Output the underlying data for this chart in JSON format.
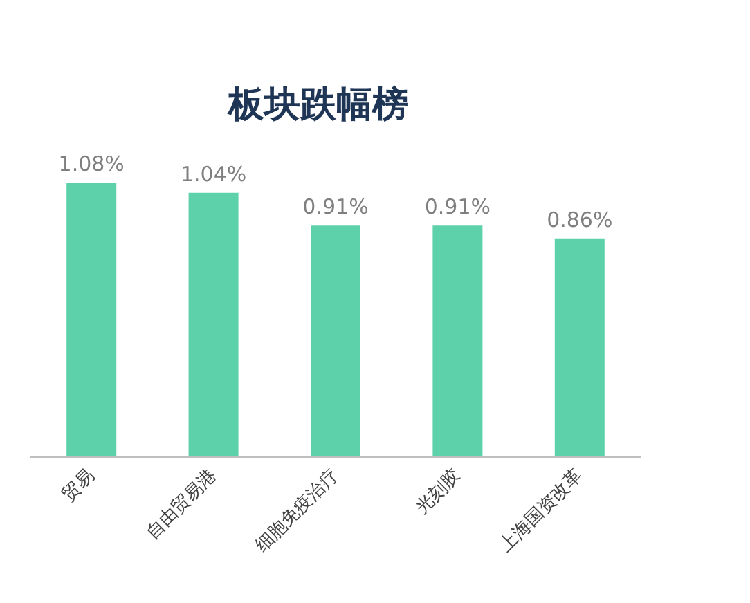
{
  "chart_data": {
    "type": "bar",
    "title": "板块跌幅榜",
    "categories": [
      "贸易",
      "自由贸易港",
      "细胞免疫治疗",
      "光刻胶",
      "上海国资改革"
    ],
    "values": [
      1.08,
      1.04,
      0.91,
      0.91,
      0.86
    ],
    "value_labels": [
      "1.08%",
      "1.04%",
      "0.91%",
      "0.91%",
      "0.86%"
    ],
    "color": "#5dd1aa"
  }
}
